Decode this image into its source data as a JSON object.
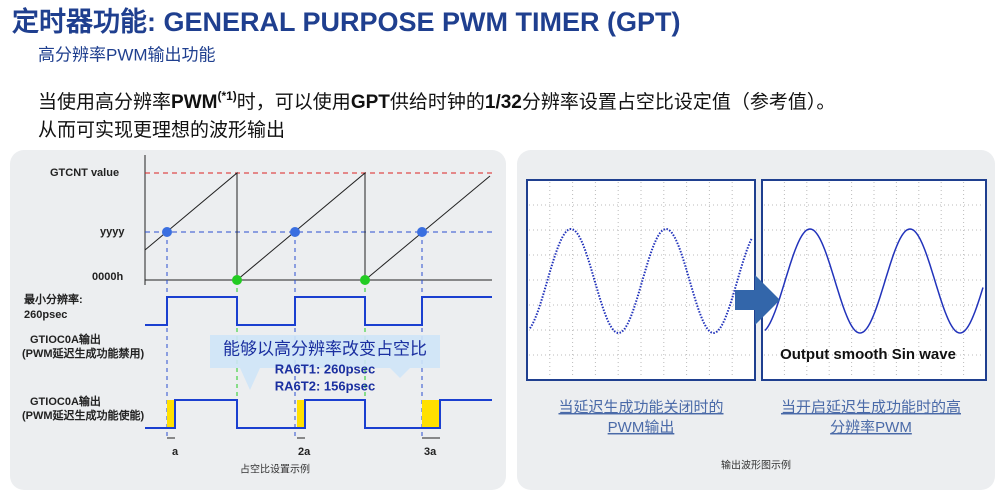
{
  "header": {
    "title": "定时器功能: GENERAL PURPOSE PWM TIMER (GPT)",
    "subtitle": "高分辨率PWM输出功能"
  },
  "body": {
    "line1": [
      "当使用高分辨率",
      "PWM",
      "(*1)",
      "时，可以使用",
      "GPT",
      "供给时钟的",
      "1/32",
      "分辨率设置占空比设定值（参考值）。"
    ],
    "line2": "从而可实现更理想的波形输出"
  },
  "left_panel": {
    "gtcnt_label": "GTCNT value",
    "yyyy_label": "yyyy",
    "zero_label": "0000h",
    "min_res": [
      "最小分辨率:",
      "260psec"
    ],
    "disabled_label": [
      "GTIOC0A输出",
      "(PWM延迟生成功能禁用)"
    ],
    "enabled_label": [
      "GTIOC0A输出",
      "(PWM延迟生成功能使能)"
    ],
    "callout": {
      "title": "能够以高分辨率改变占空比",
      "lines": [
        "RA6T1: 260psec",
        "RA6T2: 156psec"
      ]
    },
    "steps": [
      "a",
      "2a",
      "3a"
    ],
    "caption": "占空比设置示例"
  },
  "right_panel": {
    "overlay": "Output smooth Sin wave",
    "left_caption": [
      "当延迟生成功能关闭时的",
      "PWM输出"
    ],
    "right_caption": [
      "当开启延迟生成功能时的高",
      "分辨率PWM"
    ],
    "caption": "输出波形图示例"
  }
}
